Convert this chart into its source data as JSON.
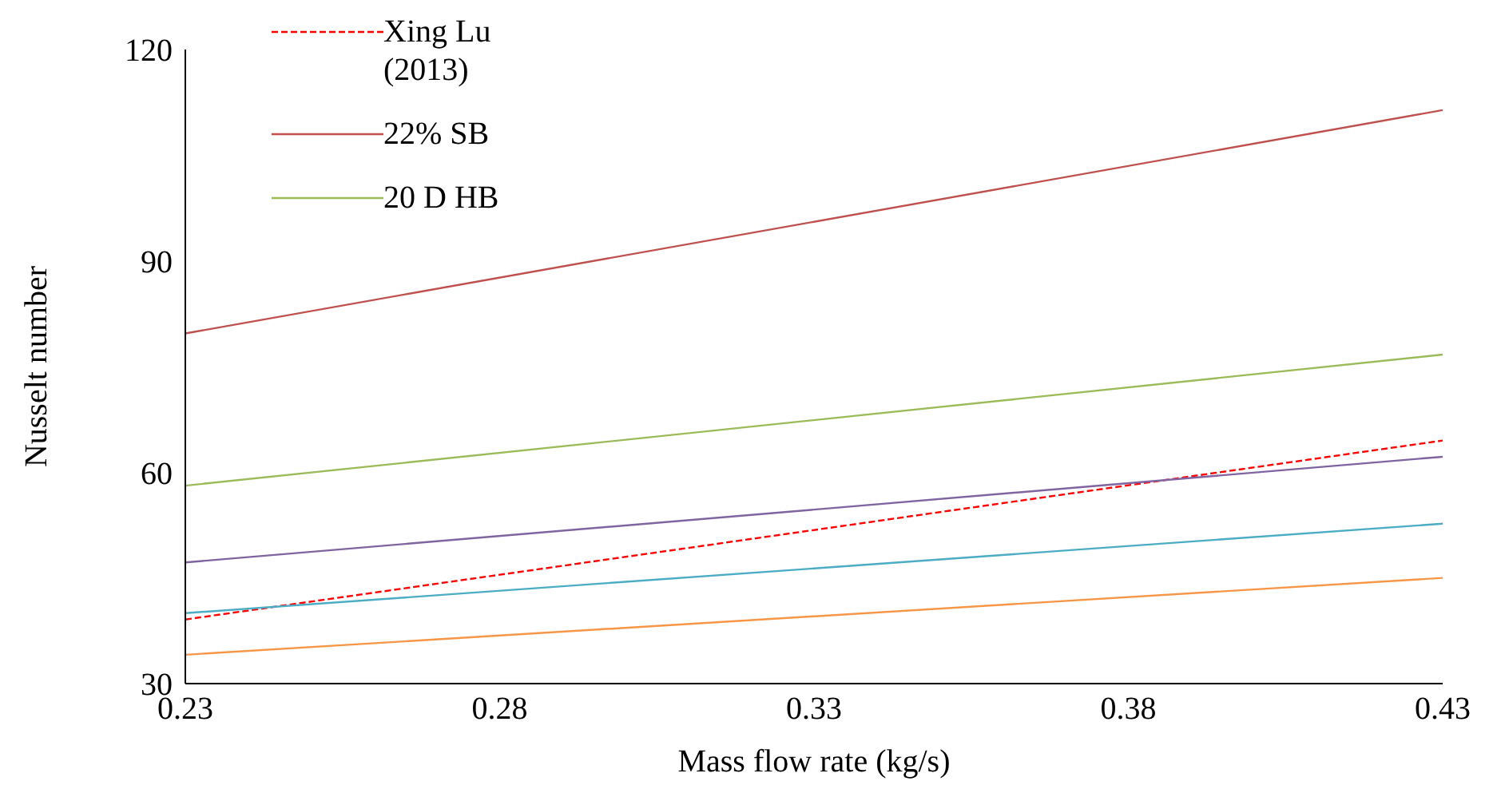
{
  "chart_data": {
    "type": "line",
    "xlabel": "Mass flow rate (kg/s)",
    "ylabel": "Nusselt number",
    "x": [
      0.23,
      0.43
    ],
    "xlim": [
      0.23,
      0.43
    ],
    "xticks": [
      0.23,
      0.28,
      0.33,
      0.38,
      0.43
    ],
    "ylim": [
      30,
      120
    ],
    "yticks": [
      30,
      60,
      90,
      120
    ],
    "grid": false,
    "legend": "top left",
    "marker": "none",
    "series": [
      {
        "name": "Xing Lu (2013)",
        "color": "#ff0000",
        "line_style": "dashed",
        "values": [
          39.1,
          64.5
        ]
      },
      {
        "name": "22% SB",
        "color": "#c0504d",
        "values": [
          79.7,
          111.4
        ]
      },
      {
        "name": "20 D HB",
        "color": "#9bbb59",
        "values": [
          58.1,
          76.7
        ]
      },
      {
        "color": "#8064a2",
        "values": [
          47.2,
          62.2
        ]
      },
      {
        "color": "#4bacc6",
        "values": [
          40.0,
          52.7
        ]
      },
      {
        "color": "#f79646",
        "values": [
          34.1,
          45.0
        ]
      }
    ]
  }
}
